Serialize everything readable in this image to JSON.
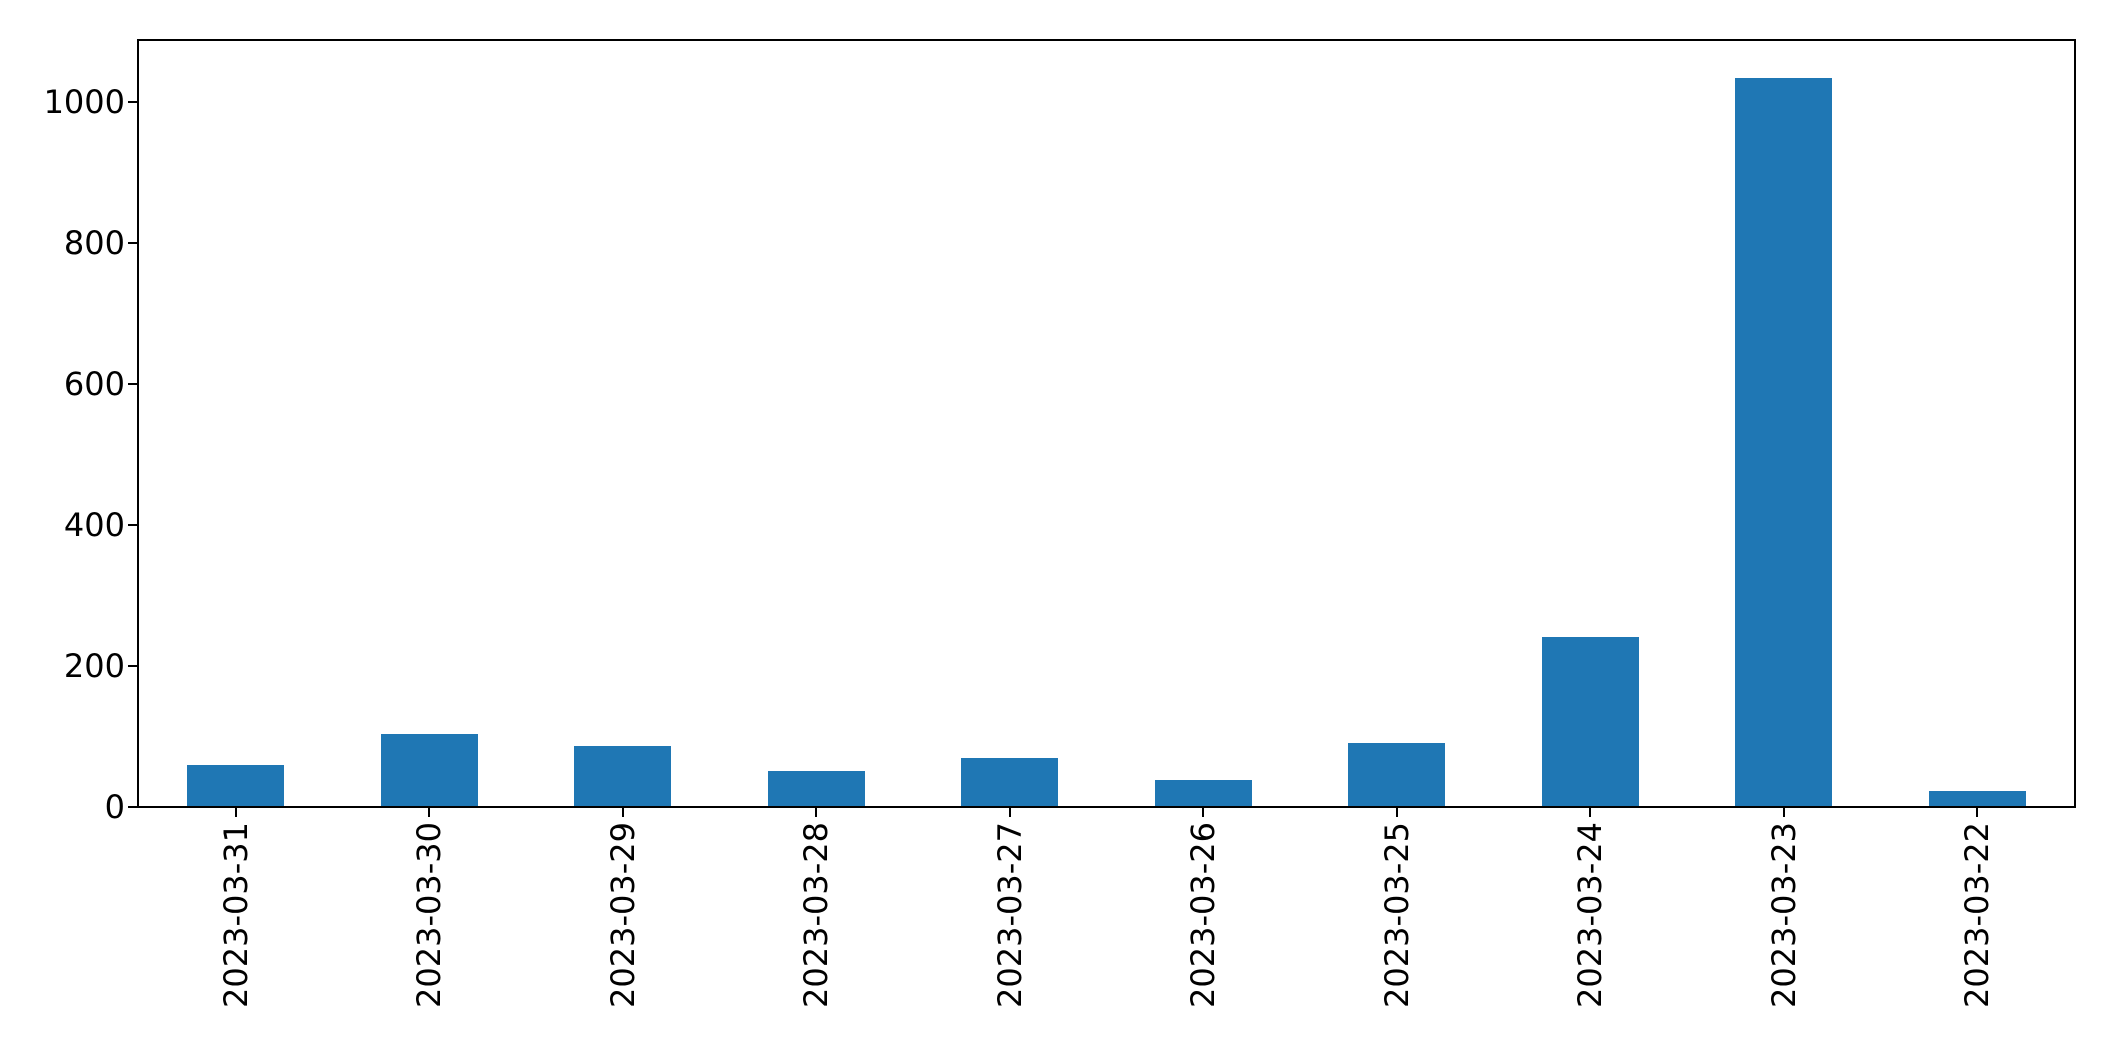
{
  "figure": {
    "background_color": "#ffffff",
    "title": ""
  },
  "chart_data": {
    "type": "bar",
    "categories": [
      "2023-03-31",
      "2023-03-30",
      "2023-03-29",
      "2023-03-28",
      "2023-03-27",
      "2023-03-26",
      "2023-03-25",
      "2023-03-24",
      "2023-03-23",
      "2023-03-22"
    ],
    "values": [
      58,
      102,
      85,
      49,
      68,
      37,
      90,
      240,
      1033,
      22
    ],
    "title": "",
    "xlabel": "",
    "ylabel": "",
    "ylim": [
      0,
      1085
    ],
    "yticks": [
      0,
      200,
      400,
      600,
      800,
      1000
    ],
    "bar_color": "#1f77b4",
    "bar_width_fraction": 0.5,
    "grid": false,
    "legend_position": "none",
    "x_tick_rotation_deg": 90,
    "axis_color": "#000000",
    "tick_label_color": "#000000"
  }
}
